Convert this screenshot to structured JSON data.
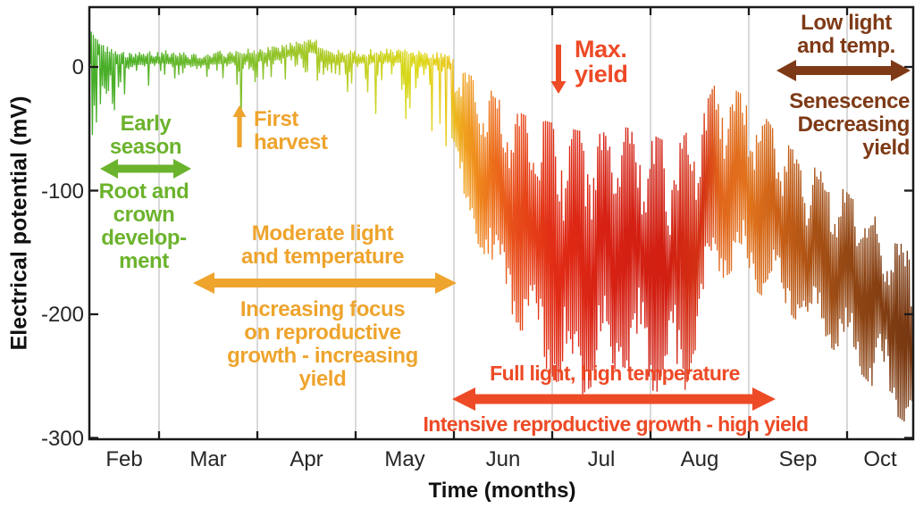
{
  "chart_data": {
    "type": "line",
    "title": "",
    "xlabel": "Time (months)",
    "ylabel": "Electrical potential (mV)",
    "x_tick_labels": [
      "Feb",
      "Mar",
      "Apr",
      "May",
      "Jun",
      "Jul",
      "Aug",
      "Sep",
      "Oct"
    ],
    "y_tick_labels": [
      "0",
      "-100",
      "-200",
      "-300"
    ],
    "y_tick_values": [
      0,
      -100,
      -200,
      -300
    ],
    "ylim": [
      -300,
      48
    ],
    "x_range_months_from_feb1": [
      0.29,
      8.67
    ],
    "grid": {
      "vertical": true,
      "horizontal": false,
      "color": "#d9d9d9"
    },
    "legend": "none",
    "signal": {
      "description": "Single noisy electrical-potential trace near 0 mV from Feb to mid-May, collapsing to large daily oscillations between about -30 and -280 mV in Jun-Jul, partial recovery in early Aug, then declining to about -150..-290 mV by late Oct. Line colour encodes season: green (Feb), yellow-green to yellow (Mar-May), orange then red (Jun-Jul), orange-red (Aug), brown (Sep-Oct).",
      "envelope_points": [
        [
          0.29,
          28,
          -55
        ],
        [
          0.45,
          14,
          -38
        ],
        [
          0.7,
          9,
          -30
        ],
        [
          1.0,
          11,
          -22
        ],
        [
          1.35,
          9,
          -18
        ],
        [
          1.7,
          11,
          -20
        ],
        [
          1.85,
          12,
          -28
        ],
        [
          2.1,
          13,
          -16
        ],
        [
          2.55,
          20,
          -14
        ],
        [
          2.75,
          12,
          -18
        ],
        [
          3.0,
          11,
          -22
        ],
        [
          3.3,
          12,
          -28
        ],
        [
          3.6,
          11,
          -35
        ],
        [
          3.85,
          9,
          -45
        ],
        [
          4.0,
          5,
          -70
        ],
        [
          4.1,
          -4,
          -125
        ],
        [
          4.3,
          -12,
          -150
        ],
        [
          4.5,
          -30,
          -185
        ],
        [
          4.75,
          -40,
          -225
        ],
        [
          5.0,
          -45,
          -250
        ],
        [
          5.2,
          -50,
          -272
        ],
        [
          5.45,
          -55,
          -255
        ],
        [
          5.7,
          -48,
          -242
        ],
        [
          5.95,
          -52,
          -252
        ],
        [
          6.15,
          -60,
          -278
        ],
        [
          6.35,
          -55,
          -262
        ],
        [
          6.5,
          -35,
          -215
        ],
        [
          6.65,
          -15,
          -175
        ],
        [
          6.85,
          -18,
          -165
        ],
        [
          7.05,
          -28,
          -180
        ],
        [
          7.3,
          -55,
          -195
        ],
        [
          7.55,
          -75,
          -208
        ],
        [
          7.8,
          -88,
          -225
        ],
        [
          8.05,
          -105,
          -240
        ],
        [
          8.3,
          -122,
          -262
        ],
        [
          8.5,
          -140,
          -282
        ],
        [
          8.67,
          -150,
          -292
        ]
      ],
      "spikes": [
        [
          0.31,
          -55
        ],
        [
          0.33,
          26
        ],
        [
          0.36,
          -45
        ],
        [
          0.55,
          -35
        ],
        [
          1.82,
          -50
        ],
        [
          2.6,
          22
        ],
        [
          3.2,
          -38
        ],
        [
          3.5,
          -42
        ],
        [
          3.78,
          -52
        ],
        [
          3.92,
          -64
        ],
        [
          3.97,
          -58
        ]
      ],
      "color_stops": [
        [
          0,
          "#44ad28"
        ],
        [
          0.09,
          "#5cb52a"
        ],
        [
          0.21,
          "#8ac22a"
        ],
        [
          0.33,
          "#c3d022"
        ],
        [
          0.4,
          "#ddd91a"
        ],
        [
          0.435,
          "#e9c91c"
        ],
        [
          0.455,
          "#f0a21f"
        ],
        [
          0.48,
          "#ee7c1c"
        ],
        [
          0.515,
          "#e84e1a"
        ],
        [
          0.565,
          "#e12c15"
        ],
        [
          0.63,
          "#d62113"
        ],
        [
          0.7,
          "#d11f12"
        ],
        [
          0.745,
          "#d53414"
        ],
        [
          0.765,
          "#e1661c"
        ],
        [
          0.8,
          "#e1731d"
        ],
        [
          0.835,
          "#cb6117"
        ],
        [
          0.88,
          "#a85115"
        ],
        [
          0.93,
          "#8f4513"
        ],
        [
          1,
          "#763711"
        ]
      ]
    },
    "annotations": {
      "early_season": {
        "text": "Early\nseason",
        "color": "#6cb32d",
        "span_months": [
          0.4,
          1.33
        ]
      },
      "root_crown": {
        "text": "Root and\ncrown\ndevelop-\nment",
        "color": "#6cb32d"
      },
      "first_harvest": {
        "text": "First\nharvest",
        "color": "#eea42d",
        "at_month": 1.82
      },
      "moderate_light": {
        "text": "Moderate light\nand temperature",
        "color": "#eea42d",
        "span_months": [
          1.35,
          4.03
        ]
      },
      "increasing_focus": {
        "text": "Increasing focus\non reproductive\ngrowth - increasing\nyield",
        "color": "#eea42d"
      },
      "max_yield": {
        "text": "Max.\nyield",
        "color": "#ed4a26",
        "at_month": 5.06
      },
      "full_light": {
        "text": "Full light, high temperature",
        "color": "#ed4a26",
        "span_months": [
          3.98,
          7.27
        ]
      },
      "intensive_growth": {
        "text": "Intensive reproductive growth - high yield",
        "color": "#ed4a26"
      },
      "low_light": {
        "text": "Low light\nand temp.",
        "color": "#7e3a16",
        "span_months": [
          7.28,
          8.65
        ]
      },
      "senescence": {
        "text": "Senescence\nDecreasing\nyield",
        "color": "#7e3a16"
      }
    }
  }
}
